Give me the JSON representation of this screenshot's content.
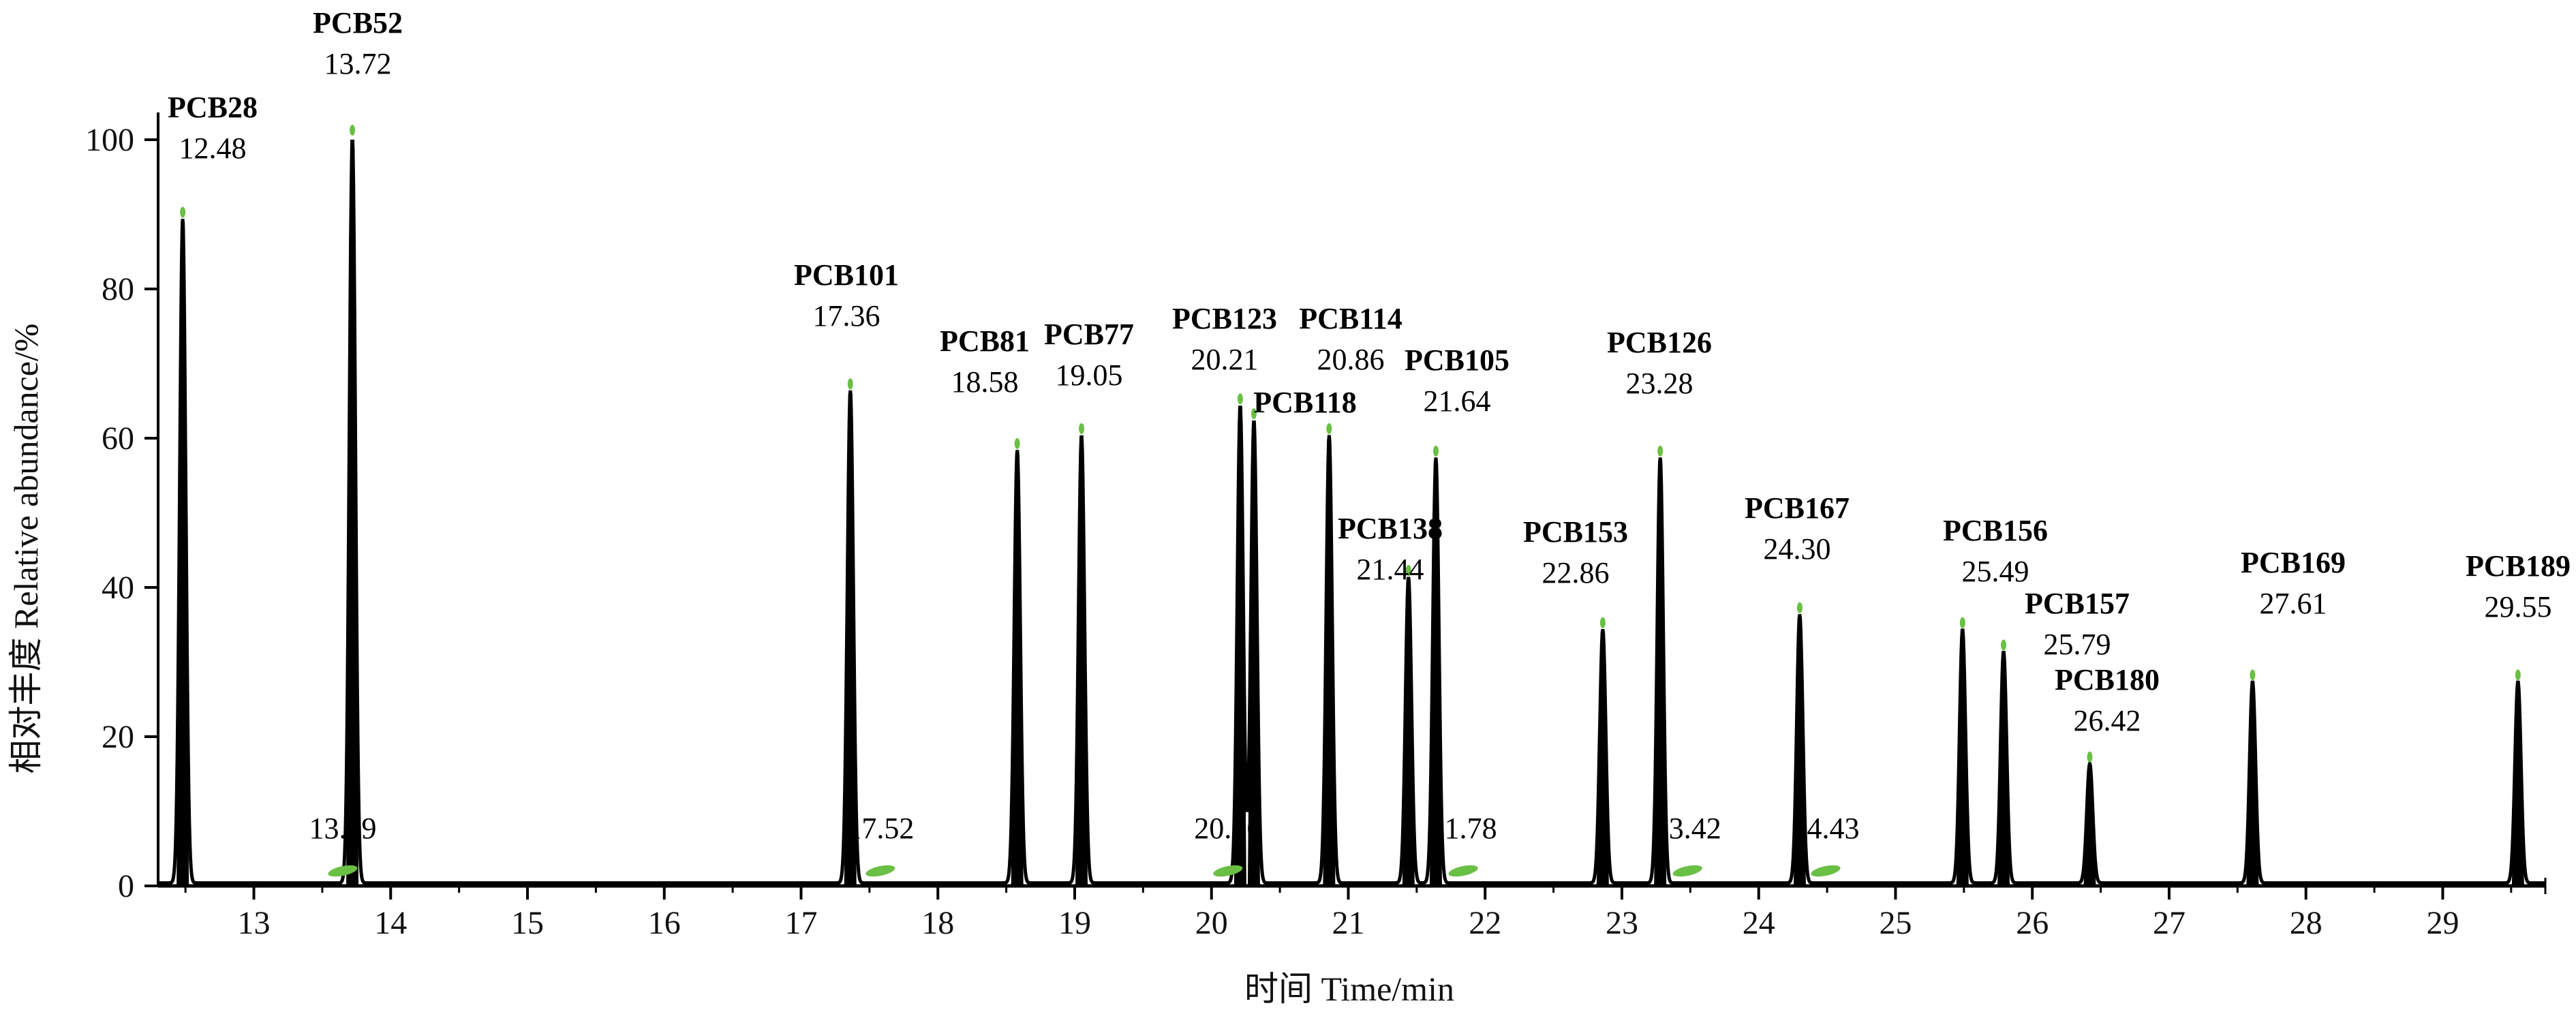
{
  "chart_data": {
    "type": "line",
    "xlabel": "时间 Time/min",
    "ylabel": "相对丰度 Relative abundance/%",
    "xlim": [
      12.3,
      29.75
    ],
    "ylim": [
      0,
      100
    ],
    "x_ticks": [
      13,
      14,
      15,
      16,
      17,
      18,
      19,
      20,
      21,
      22,
      23,
      24,
      25,
      26,
      27,
      28,
      29
    ],
    "y_ticks": [
      0,
      20,
      40,
      60,
      80,
      100
    ],
    "grid": false,
    "trace_color": "#000000",
    "marker_color": "#6abf45",
    "peaks": [
      {
        "name": "PCB28",
        "time": 12.48,
        "height": 89
      },
      {
        "name": "PCB52",
        "time": 13.72,
        "height": 100
      },
      {
        "name": "PCB101",
        "time": 17.36,
        "height": 66
      },
      {
        "name": "PCB81",
        "time": 18.58,
        "height": 58
      },
      {
        "name": "PCB77",
        "time": 19.05,
        "height": 60
      },
      {
        "name": "PCB123",
        "time": 20.21,
        "height": 64
      },
      {
        "name": "PCB118",
        "time": 20.31,
        "height": 62
      },
      {
        "name": "PCB114",
        "time": 20.86,
        "height": 60
      },
      {
        "name": "PCB138",
        "time": 21.44,
        "height": 41
      },
      {
        "name": "PCB105",
        "time": 21.64,
        "height": 57
      },
      {
        "name": "PCB153",
        "time": 22.86,
        "height": 34
      },
      {
        "name": "PCB126",
        "time": 23.28,
        "height": 57
      },
      {
        "name": "PCB167",
        "time": 24.3,
        "height": 36
      },
      {
        "name": "PCB156",
        "time": 25.49,
        "height": 34
      },
      {
        "name": "PCB157",
        "time": 25.79,
        "height": 31
      },
      {
        "name": "PCB180",
        "time": 26.42,
        "height": 16
      },
      {
        "name": "PCB169",
        "time": 27.61,
        "height": 27
      },
      {
        "name": "PCB189",
        "time": 29.55,
        "height": 27
      }
    ],
    "annotations": [
      {
        "name": "PCB28",
        "time_label": "12.48"
      },
      {
        "name": "PCB52",
        "time_label": "13.72"
      },
      {
        "name": "PCB101",
        "time_label": "17.36"
      },
      {
        "name": "PCB81",
        "time_label": "18.58"
      },
      {
        "name": "PCB77",
        "time_label": "19.05"
      },
      {
        "name": "PCB123",
        "time_label": "20.21"
      },
      {
        "name": "PCB114",
        "time_label": "20.86"
      },
      {
        "name": "PCB118",
        "time_label": ""
      },
      {
        "name": "PCB105",
        "time_label": "21.64"
      },
      {
        "name": "PCB138",
        "time_label": "21.44"
      },
      {
        "name": "PCB126",
        "time_label": "23.28"
      },
      {
        "name": "PCB153",
        "time_label": "22.86"
      },
      {
        "name": "PCB167",
        "time_label": "24.30"
      },
      {
        "name": "PCB156",
        "time_label": "25.49"
      },
      {
        "name": "PCB157",
        "time_label": "25.79"
      },
      {
        "name": "PCB180",
        "time_label": "26.42"
      },
      {
        "name": "PCB169",
        "time_label": "27.61"
      },
      {
        "name": "PCB189",
        "time_label": "29.55"
      }
    ],
    "baseline_markers": [
      {
        "time": 13.59,
        "label": "13.59"
      },
      {
        "time": 17.52,
        "label": "17.52"
      },
      {
        "time": 20.06,
        "label": "20.06"
      },
      {
        "time": 21.78,
        "label": "21.78"
      },
      {
        "time": 23.42,
        "label": "23.42"
      },
      {
        "time": 24.43,
        "label": "24.43"
      }
    ]
  }
}
